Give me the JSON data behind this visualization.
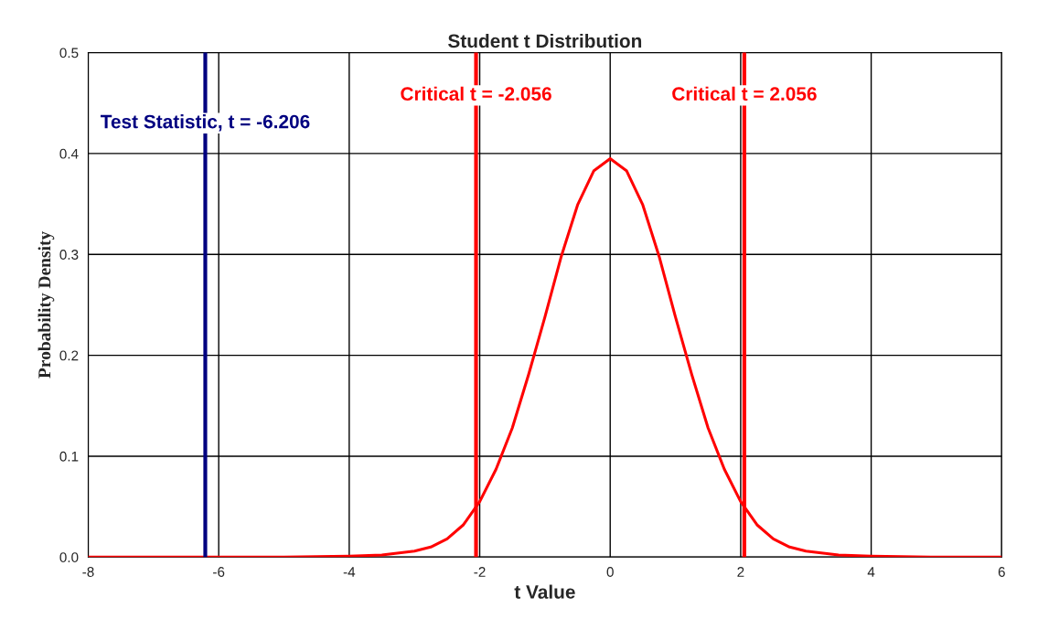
{
  "chart_data": {
    "type": "line",
    "title": "Student t Distribution",
    "xlabel": "t Value",
    "ylabel": "Probability Density",
    "series": [
      {
        "color": "#ff0000",
        "x": [
          -8,
          -6,
          -5,
          -4,
          -3.5,
          -3,
          -2.75,
          -2.5,
          -2.25,
          -2,
          -1.75,
          -1.5,
          -1.25,
          -1,
          -0.75,
          -0.5,
          -0.25,
          0,
          0.25,
          0.5,
          0.75,
          1,
          1.25,
          1.5,
          1.75,
          2,
          2.25,
          2.5,
          2.75,
          3,
          3.5,
          4,
          5,
          6
        ],
        "values": [
          0,
          0,
          0,
          0.001,
          0.002,
          0.006,
          0.01,
          0.018,
          0.032,
          0.055,
          0.087,
          0.128,
          0.181,
          0.238,
          0.298,
          0.349,
          0.383,
          0.395,
          0.383,
          0.349,
          0.298,
          0.238,
          0.181,
          0.128,
          0.087,
          0.055,
          0.032,
          0.018,
          0.01,
          0.006,
          0.002,
          0.001,
          0,
          0
        ]
      }
    ],
    "xlim": [
      -8,
      6
    ],
    "xticks": [
      -8,
      -6,
      -4,
      -2,
      0,
      2,
      4,
      6
    ],
    "ylim": [
      0,
      0.5
    ],
    "yticks": [
      {
        "value": 0,
        "label": "0.0"
      },
      0.1,
      0.2,
      0.3,
      0.4,
      0.5
    ],
    "grid": true,
    "ref_lines": [
      {
        "axis": "x",
        "value": -6.206,
        "label": "Test Statistic, t = -6.206",
        "color": "#000080"
      },
      {
        "axis": "x",
        "value": -2.056,
        "label": "Critical t = -2.056",
        "color": "#ff0000"
      },
      {
        "axis": "x",
        "value": 2.056,
        "label": "Critical t = 2.056",
        "color": "#ff0000"
      }
    ]
  }
}
